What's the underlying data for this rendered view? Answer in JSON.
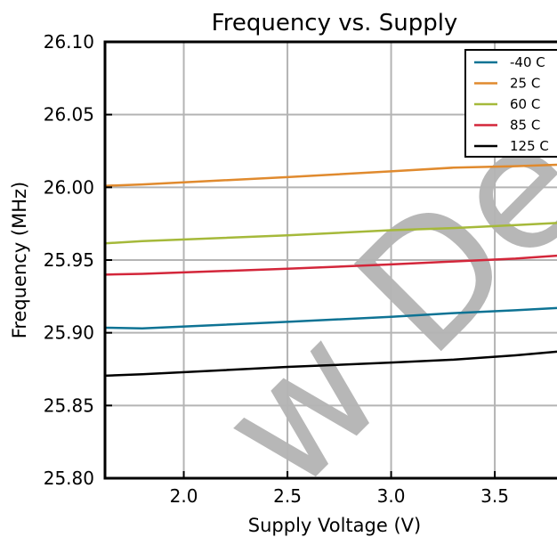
{
  "chart_data": {
    "type": "line",
    "title": "Frequency vs. Supply",
    "xlabel": "Supply Voltage (V)",
    "ylabel": "Frequency (MHz)",
    "xlim": [
      1.62,
      3.8
    ],
    "ylim": [
      25.8,
      26.1
    ],
    "x_ticks": [
      2.0,
      2.5,
      3.0,
      3.5
    ],
    "x_tick_labels": [
      "2.0",
      "2.5",
      "3.0",
      "3.5"
    ],
    "y_ticks": [
      25.8,
      25.85,
      25.9,
      25.95,
      26.0,
      26.05,
      26.1
    ],
    "y_tick_labels": [
      "25.80",
      "25.85",
      "25.90",
      "25.95",
      "26.00",
      "26.05",
      "26.10"
    ],
    "grid": true,
    "legend_position": "top-right",
    "x": [
      1.62,
      1.8,
      2.5,
      3.0,
      3.3,
      3.6,
      3.8
    ],
    "series": [
      {
        "name": "-40 C",
        "color": "#0e7394",
        "values": [
          25.9035,
          25.903,
          25.9075,
          25.911,
          25.9135,
          25.9155,
          25.917
        ]
      },
      {
        "name": "25 C",
        "color": "#e08a2e",
        "values": [
          26.001,
          26.002,
          26.007,
          26.011,
          26.0135,
          26.0145,
          26.0155
        ]
      },
      {
        "name": "60 C",
        "color": "#a5b93a",
        "values": [
          25.9615,
          25.963,
          25.967,
          25.9705,
          25.972,
          25.974,
          25.9755
        ]
      },
      {
        "name": "85 C",
        "color": "#d3263a",
        "values": [
          25.94,
          25.9405,
          25.944,
          25.947,
          25.949,
          25.951,
          25.953
        ]
      },
      {
        "name": "125 C",
        "color": "#000000",
        "values": [
          25.8705,
          25.8715,
          25.8765,
          25.8795,
          25.8815,
          25.8845,
          25.887
        ]
      }
    ],
    "watermark": "w Desig"
  }
}
